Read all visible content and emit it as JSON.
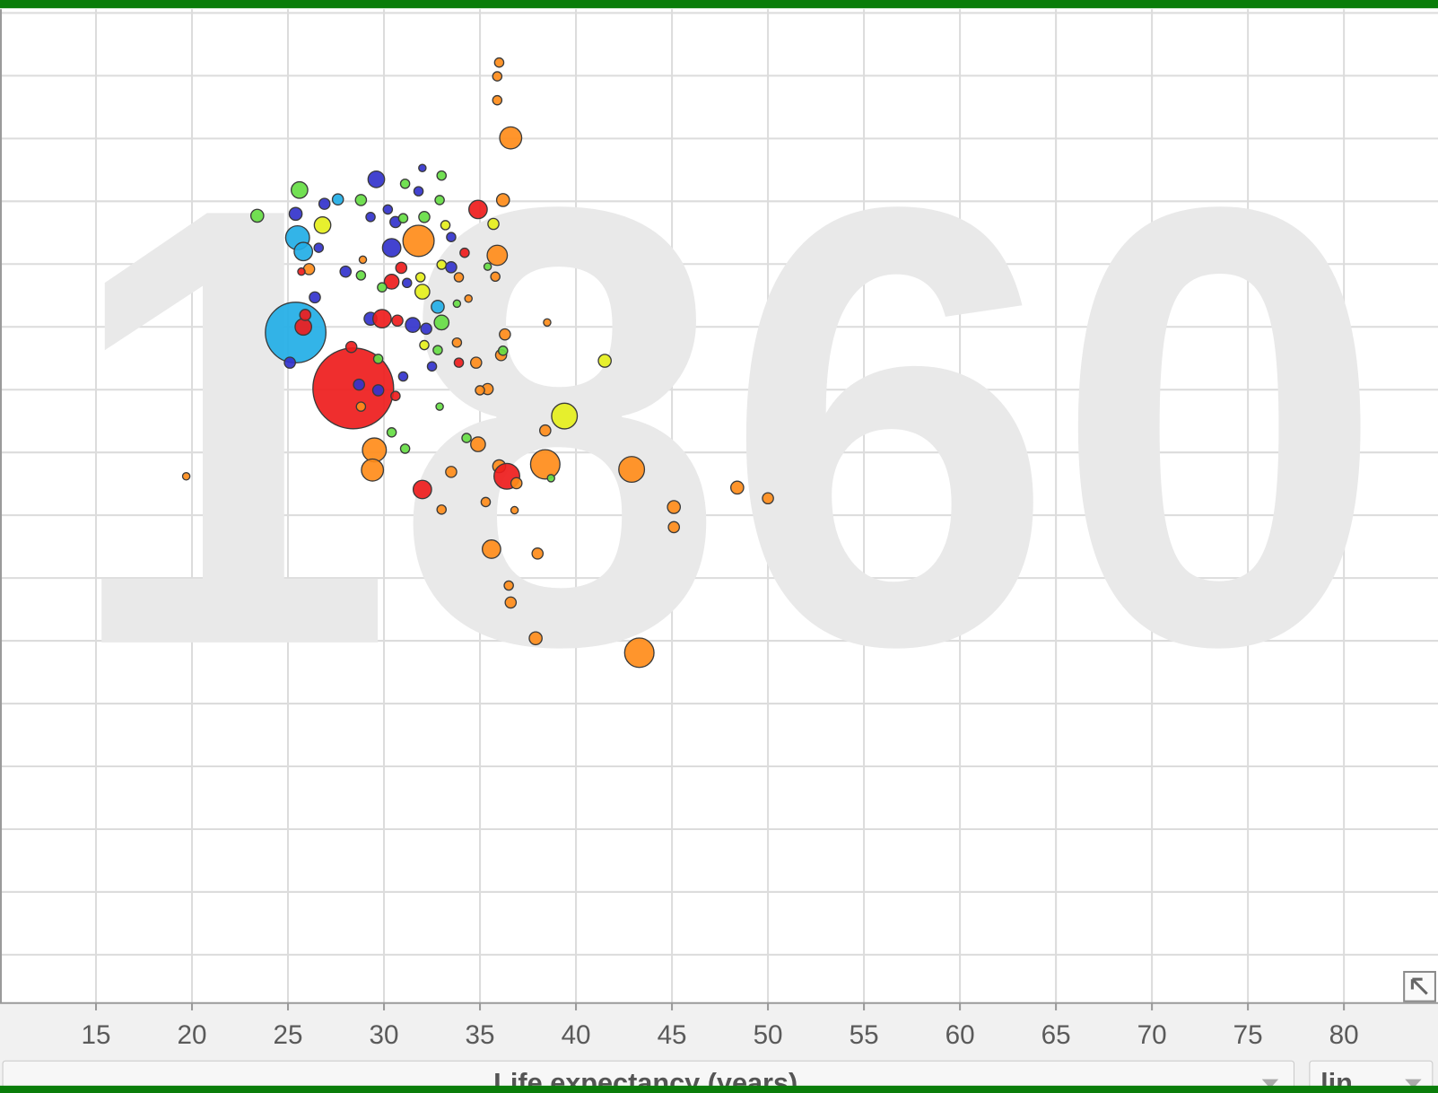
{
  "chart_data": {
    "type": "scatter",
    "watermark": "1860",
    "xlabel": "Life expectancy (years)",
    "scale_label": "lin",
    "xlim": [
      10,
      84.9
    ],
    "ylim": [
      -0.77,
      15.06
    ],
    "xticks": [
      15,
      20,
      25,
      30,
      35,
      40,
      45,
      50,
      55,
      60,
      65,
      70,
      75,
      80
    ],
    "ygrid": [
      0,
      1,
      2,
      3,
      4,
      5,
      6,
      7,
      8,
      9,
      10,
      11,
      12,
      13,
      14,
      15
    ],
    "grid": true,
    "x": [
      36.0,
      35.9,
      35.9,
      36.6,
      36.2,
      34.9,
      35.7,
      35.9,
      35.8,
      36.3,
      36.1,
      36.2,
      34.8,
      38.5,
      41.5,
      39.4,
      38.4,
      35.4,
      35.0,
      38.4,
      42.9,
      36.0,
      36.4,
      36.9,
      34.9,
      34.3,
      33.5,
      32.0,
      33.0,
      35.3,
      36.8,
      35.6,
      38.0,
      36.5,
      36.6,
      37.9,
      43.3,
      45.1,
      45.1,
      48.4,
      50.0,
      19.7,
      29.5,
      29.4,
      28.4,
      25.4,
      25.1,
      25.8,
      25.9,
      26.4,
      25.5,
      25.8,
      25.6,
      23.4,
      26.8,
      26.9,
      27.6,
      25.4,
      29.6,
      28.8,
      29.3,
      31.1,
      32.0,
      33.0,
      31.8,
      32.9,
      31.8,
      30.4,
      30.2,
      30.6,
      31.0,
      32.1,
      33.2,
      33.5,
      34.2,
      33.0,
      33.5,
      30.9,
      28.0,
      28.8,
      30.4,
      29.9,
      32.0,
      31.9,
      31.2,
      32.8,
      33.0,
      33.8,
      34.4,
      29.3,
      29.9,
      30.7,
      31.5,
      32.2,
      33.8,
      32.1,
      32.8,
      32.5,
      33.9,
      28.3,
      29.7,
      28.7,
      29.7,
      30.6,
      31.0,
      28.8,
      30.4,
      31.1,
      32.9,
      26.6,
      26.1,
      25.7,
      28.9,
      33.9,
      35.4,
      38.7
    ],
    "y": [
      14.21,
      13.99,
      13.61,
      13.01,
      12.02,
      11.87,
      11.64,
      11.14,
      10.8,
      9.88,
      9.55,
      9.62,
      9.43,
      10.07,
      9.46,
      8.58,
      8.35,
      9.01,
      8.99,
      7.81,
      7.73,
      7.78,
      7.62,
      7.51,
      8.13,
      8.23,
      7.69,
      7.41,
      7.09,
      7.21,
      7.08,
      6.46,
      6.39,
      5.88,
      5.61,
      5.04,
      4.81,
      7.13,
      6.81,
      7.44,
      7.27,
      7.62,
      8.04,
      7.72,
      9.02,
      9.91,
      9.43,
      10.0,
      10.19,
      10.47,
      11.42,
      11.2,
      12.18,
      11.77,
      11.62,
      11.96,
      12.03,
      11.8,
      12.35,
      12.02,
      11.75,
      12.28,
      12.53,
      12.41,
      12.16,
      12.02,
      11.37,
      11.26,
      11.87,
      11.67,
      11.73,
      11.75,
      11.62,
      11.43,
      11.18,
      10.99,
      10.95,
      10.94,
      10.88,
      10.82,
      10.72,
      10.63,
      10.56,
      10.79,
      10.7,
      10.32,
      10.07,
      10.37,
      10.45,
      10.13,
      10.13,
      10.1,
      10.03,
      9.97,
      9.75,
      9.71,
      9.63,
      9.37,
      9.43,
      9.68,
      9.49,
      9.08,
      8.99,
      8.9,
      9.21,
      8.73,
      8.32,
      8.06,
      8.73,
      11.26,
      10.92,
      10.88,
      11.07,
      10.79,
      10.96,
      7.59
    ],
    "sizes": [
      5,
      5,
      5,
      12,
      7,
      10,
      6,
      11,
      5,
      6,
      6,
      5,
      6,
      4,
      7,
      14,
      6,
      6,
      5,
      16,
      14,
      7,
      14,
      6,
      8,
      5,
      6,
      10,
      5,
      5,
      4,
      10,
      6,
      5,
      6,
      7,
      16,
      7,
      6,
      7,
      6,
      4,
      13,
      12,
      44,
      33,
      6,
      9,
      6,
      6,
      13,
      10,
      9,
      7,
      9,
      6,
      6,
      7,
      9,
      6,
      5,
      5,
      4,
      5,
      5,
      5,
      17,
      10,
      5,
      6,
      5,
      6,
      5,
      5,
      5,
      5,
      6,
      6,
      6,
      5,
      8,
      5,
      8,
      5,
      5,
      7,
      8,
      4,
      4,
      7,
      10,
      6,
      8,
      6,
      5,
      5,
      5,
      5,
      5,
      6,
      5,
      6,
      6,
      5,
      5,
      5,
      5,
      5,
      4,
      5,
      6,
      4,
      4,
      5,
      4,
      4
    ],
    "colors": [
      "#ff8c1a",
      "#ff8c1a",
      "#ff8c1a",
      "#ff8c1a",
      "#ff8c1a",
      "#ee1c1c",
      "#e5ef1c",
      "#ff8c1a",
      "#ff8c1a",
      "#ff8c1a",
      "#ff8c1a",
      "#66dd44",
      "#ff8c1a",
      "#ff8c1a",
      "#e5ef1c",
      "#e5ef1c",
      "#ff8c1a",
      "#ff8c1a",
      "#ff8c1a",
      "#ff8c1a",
      "#ff8c1a",
      "#ff8c1a",
      "#ee1c1c",
      "#ff8c1a",
      "#ff8c1a",
      "#66dd44",
      "#ff8c1a",
      "#ee1c1c",
      "#ff8c1a",
      "#ff8c1a",
      "#ff8c1a",
      "#ff8c1a",
      "#ff8c1a",
      "#ff8c1a",
      "#ff8c1a",
      "#ff8c1a",
      "#ff8c1a",
      "#ff8c1a",
      "#ff8c1a",
      "#ff8c1a",
      "#ff8c1a",
      "#ff8c1a",
      "#ff8c1a",
      "#ff8c1a",
      "#ee1c1c",
      "#22aee6",
      "#3333cc",
      "#ee1c1c",
      "#ee1c1c",
      "#3333cc",
      "#22aee6",
      "#22aee6",
      "#66dd44",
      "#66dd44",
      "#e5ef1c",
      "#3333cc",
      "#22aee6",
      "#3333cc",
      "#3333cc",
      "#66dd44",
      "#3333cc",
      "#66dd44",
      "#3333cc",
      "#66dd44",
      "#3333cc",
      "#66dd44",
      "#ff8c1a",
      "#3333cc",
      "#3333cc",
      "#3333cc",
      "#66dd44",
      "#66dd44",
      "#e5ef1c",
      "#3333cc",
      "#ee1c1c",
      "#e5ef1c",
      "#3333cc",
      "#ee1c1c",
      "#3333cc",
      "#66dd44",
      "#ee1c1c",
      "#66dd44",
      "#e5ef1c",
      "#e5ef1c",
      "#3333cc",
      "#22aee6",
      "#66dd44",
      "#66dd44",
      "#ff8c1a",
      "#3333cc",
      "#ee1c1c",
      "#ee1c1c",
      "#3333cc",
      "#3333cc",
      "#ff8c1a",
      "#e5ef1c",
      "#66dd44",
      "#3333cc",
      "#ee1c1c",
      "#ee1c1c",
      "#66dd44",
      "#3333cc",
      "#3333cc",
      "#ee1c1c",
      "#3333cc",
      "#ff8c1a",
      "#66dd44",
      "#66dd44",
      "#66dd44",
      "#3333cc",
      "#ff8c1a",
      "#ee1c1c",
      "#ff8c1a",
      "#ff8c1a",
      "#66dd44",
      "#66dd44"
    ]
  }
}
